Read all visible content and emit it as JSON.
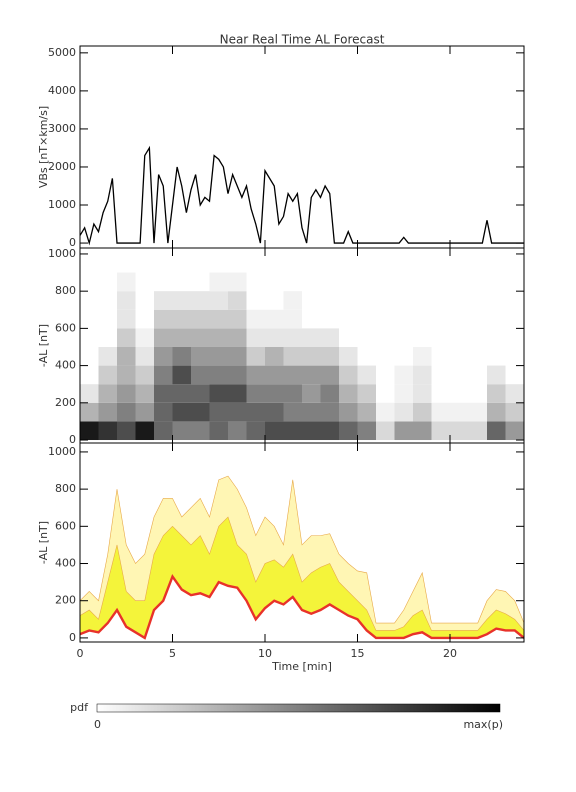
{
  "title": "Near Real Time AL Forecast",
  "charts": [
    {
      "type": "line",
      "ylabel": "VBs [nT×km/s]",
      "color": "#000000",
      "xlim": [
        0,
        24
      ],
      "xticks": [
        0,
        5,
        10,
        15,
        20
      ],
      "show_xtick_labels": false,
      "ylim": [
        -130,
        5180
      ],
      "yticks": [
        0,
        1000,
        2000,
        3000,
        4000,
        5000
      ],
      "x": [
        0,
        0.25,
        0.5,
        0.75,
        1,
        1.25,
        1.5,
        1.75,
        2,
        3.25,
        3.5,
        3.75,
        4,
        4.25,
        4.5,
        4.75,
        5,
        5.25,
        5.5,
        5.75,
        6,
        6.25,
        6.5,
        6.75,
        7,
        7.25,
        7.5,
        7.75,
        8,
        8.25,
        8.5,
        8.75,
        9,
        9.25,
        9.5,
        9.75,
        10,
        10.25,
        10.5,
        10.75,
        11,
        11.25,
        11.5,
        11.75,
        12,
        12.25,
        12.5,
        12.75,
        13,
        13.25,
        13.5,
        13.75,
        14.25,
        14.5,
        14.75,
        17.25,
        17.5,
        17.75,
        21.75,
        22,
        22.25,
        24
      ],
      "values": [
        200,
        400,
        0,
        500,
        300,
        800,
        1100,
        1700,
        0,
        0,
        2300,
        2500,
        0,
        1800,
        1500,
        0,
        1000,
        2000,
        1500,
        800,
        1400,
        1800,
        1000,
        1200,
        1100,
        2300,
        2200,
        2000,
        1300,
        1800,
        1500,
        1200,
        1500,
        900,
        500,
        0,
        1900,
        1700,
        1500,
        500,
        700,
        1300,
        1100,
        1300,
        400,
        0,
        1200,
        1400,
        1200,
        1500,
        1300,
        0,
        0,
        300,
        0,
        0,
        150,
        0,
        0,
        600,
        0,
        0
      ]
    },
    {
      "type": "heatmap",
      "ylabel": "-AL [nT]",
      "xlim": [
        0,
        24
      ],
      "xticks": [
        0,
        5,
        10,
        15,
        20
      ],
      "show_xtick_labels": false,
      "ylim": [
        -16,
        1032
      ],
      "yticks": [
        0,
        200,
        400,
        600,
        800,
        1000
      ],
      "x_bins": [
        0,
        1,
        2,
        3,
        4,
        5,
        6,
        7,
        8,
        9,
        10,
        11,
        12,
        13,
        14,
        15,
        16,
        17,
        18,
        19,
        20,
        21,
        22,
        23,
        24
      ],
      "y_bins": [
        0,
        100,
        200,
        300,
        400,
        500,
        600,
        700,
        800,
        900,
        1000
      ],
      "values": [
        [
          0.9,
          0.3,
          0.1,
          0,
          0,
          0,
          0,
          0,
          0,
          0
        ],
        [
          0.8,
          0.4,
          0.3,
          0.2,
          0.1,
          0,
          0,
          0,
          0,
          0
        ],
        [
          0.7,
          0.5,
          0.4,
          0.3,
          0.3,
          0.2,
          0.1,
          0.1,
          0.05,
          0
        ],
        [
          0.9,
          0.4,
          0.3,
          0.2,
          0.1,
          0.05,
          0,
          0,
          0,
          0
        ],
        [
          0.6,
          0.6,
          0.6,
          0.5,
          0.4,
          0.3,
          0.2,
          0.1,
          0,
          0
        ],
        [
          0.5,
          0.7,
          0.6,
          0.7,
          0.5,
          0.3,
          0.2,
          0.1,
          0,
          0
        ],
        [
          0.5,
          0.7,
          0.6,
          0.5,
          0.4,
          0.3,
          0.2,
          0.1,
          0,
          0
        ],
        [
          0.6,
          0.6,
          0.7,
          0.5,
          0.4,
          0.3,
          0.2,
          0.1,
          0.05,
          0
        ],
        [
          0.5,
          0.6,
          0.7,
          0.5,
          0.4,
          0.3,
          0.2,
          0.15,
          0.05,
          0
        ],
        [
          0.6,
          0.6,
          0.5,
          0.4,
          0.2,
          0.1,
          0.05,
          0,
          0,
          0
        ],
        [
          0.7,
          0.6,
          0.5,
          0.4,
          0.3,
          0.1,
          0.05,
          0,
          0,
          0
        ],
        [
          0.7,
          0.5,
          0.5,
          0.4,
          0.2,
          0.1,
          0.05,
          0.05,
          0,
          0
        ],
        [
          0.7,
          0.5,
          0.4,
          0.4,
          0.2,
          0.1,
          0,
          0,
          0,
          0
        ],
        [
          0.7,
          0.5,
          0.5,
          0.4,
          0.2,
          0.1,
          0,
          0,
          0,
          0
        ],
        [
          0.6,
          0.4,
          0.3,
          0.2,
          0.1,
          0,
          0,
          0,
          0,
          0
        ],
        [
          0.5,
          0.3,
          0.2,
          0.1,
          0,
          0,
          0,
          0,
          0,
          0
        ],
        [
          0.15,
          0.05,
          0,
          0,
          0,
          0,
          0,
          0,
          0,
          0
        ],
        [
          0.4,
          0.1,
          0.05,
          0.05,
          0,
          0,
          0,
          0,
          0,
          0
        ],
        [
          0.4,
          0.2,
          0.1,
          0.1,
          0.05,
          0,
          0,
          0,
          0,
          0
        ],
        [
          0.15,
          0.05,
          0,
          0,
          0,
          0,
          0,
          0,
          0,
          0
        ],
        [
          0.15,
          0.05,
          0,
          0,
          0,
          0,
          0,
          0,
          0,
          0
        ],
        [
          0.15,
          0.05,
          0,
          0,
          0,
          0,
          0,
          0,
          0,
          0
        ],
        [
          0.6,
          0.3,
          0.2,
          0.1,
          0,
          0,
          0,
          0,
          0,
          0
        ],
        [
          0.4,
          0.2,
          0.1,
          0,
          0,
          0,
          0,
          0,
          0,
          0
        ]
      ]
    },
    {
      "type": "band",
      "ylabel": "-AL [nT]",
      "xlabel": "Time [min]",
      "xlim": [
        0,
        24
      ],
      "xticks": [
        0,
        5,
        10,
        15,
        20
      ],
      "show_xtick_labels": true,
      "ylim": [
        -22,
        1048
      ],
      "yticks": [
        0,
        200,
        400,
        600,
        800,
        1000
      ],
      "x": [
        0,
        0.5,
        1,
        1.5,
        2,
        2.5,
        3,
        3.5,
        4,
        4.5,
        5,
        5.5,
        6,
        6.5,
        7,
        7.5,
        8,
        8.5,
        9,
        9.5,
        10,
        10.5,
        11,
        11.5,
        12,
        12.5,
        13,
        13.5,
        14,
        14.5,
        15,
        15.5,
        16,
        16.5,
        17,
        17.5,
        18,
        18.5,
        19,
        19.5,
        20,
        20.5,
        21,
        21.5,
        22,
        22.5,
        23,
        23.5,
        24
      ],
      "series": [
        {
          "color": "#e8322a",
          "values": [
            20,
            40,
            30,
            80,
            150,
            60,
            30,
            0,
            150,
            200,
            330,
            260,
            230,
            240,
            220,
            300,
            280,
            270,
            200,
            100,
            160,
            200,
            180,
            220,
            150,
            130,
            150,
            180,
            150,
            120,
            100,
            40,
            0,
            0,
            0,
            0,
            20,
            30,
            0,
            0,
            0,
            0,
            0,
            0,
            20,
            50,
            40,
            40,
            0
          ]
        },
        {
          "color": "#f4f43a",
          "values": [
            120,
            150,
            100,
            300,
            500,
            250,
            200,
            200,
            450,
            550,
            600,
            550,
            500,
            550,
            450,
            600,
            650,
            500,
            450,
            300,
            400,
            420,
            380,
            450,
            300,
            350,
            380,
            400,
            300,
            250,
            200,
            150,
            40,
            40,
            40,
            60,
            120,
            150,
            40,
            40,
            40,
            40,
            40,
            40,
            100,
            150,
            130,
            100,
            40
          ]
        },
        {
          "color": "#fff6b4",
          "values": [
            200,
            250,
            200,
            450,
            800,
            500,
            400,
            450,
            650,
            750,
            750,
            650,
            700,
            750,
            650,
            850,
            870,
            800,
            700,
            550,
            650,
            600,
            500,
            850,
            500,
            550,
            550,
            560,
            450,
            400,
            360,
            350,
            80,
            80,
            80,
            150,
            250,
            350,
            80,
            80,
            80,
            80,
            80,
            80,
            200,
            260,
            250,
            200,
            80
          ]
        }
      ]
    }
  ],
  "colorbar": {
    "label": "pdf",
    "min_label": "0",
    "max_label": "max(p)"
  }
}
